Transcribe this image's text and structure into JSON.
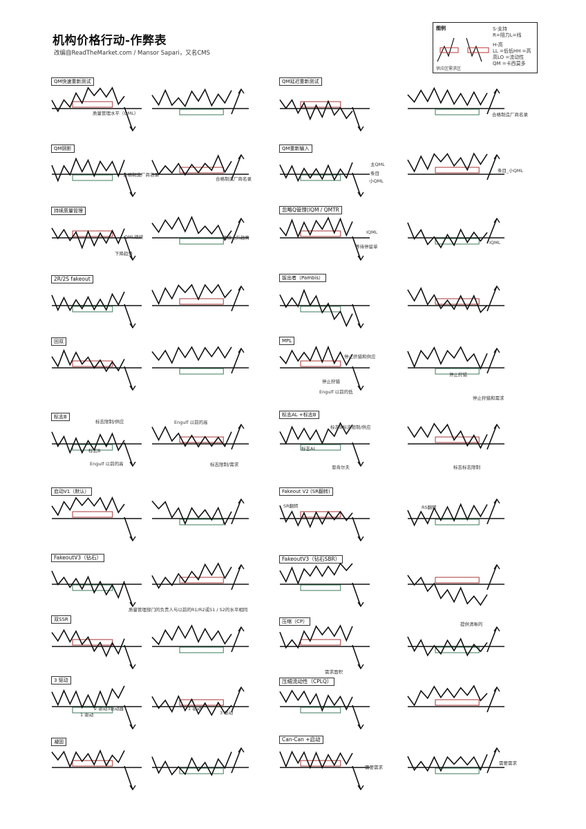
{
  "header": {
    "title": "机构价格行动-作弊表",
    "subtitle": "改编自ReadTheMarket.com / Mansor Sapari，又名CMS"
  },
  "legend": {
    "title": "图例",
    "lines": [
      "S-支持",
      "R=阻力L=线",
      "H-高",
      "LL =低低HH =高",
      "高LO =流动性",
      "QM =卡西莫多"
    ],
    "caption": "供应区需求区"
  },
  "sections": [
    {
      "label": "QM快速重新测试"
    },
    {
      "label": "QM延迟重新测试"
    },
    {
      "label": "QM阴影"
    },
    {
      "label": "QM重新输入"
    },
    {
      "label": "持续质量管理"
    },
    {
      "label": "忽略Q管理(IQM / QMTR"
    },
    {
      "label": "2R/2S fakeout"
    },
    {
      "label": "拔出者（Pambis）"
    },
    {
      "label": "回双"
    },
    {
      "label": "MPL"
    },
    {
      "label": "标志B"
    },
    {
      "label": "标志AL +标志B"
    },
    {
      "label": "启动V1（默认）"
    },
    {
      "label": "Fakeout V2 (SR翻转)"
    },
    {
      "label": "FakeoutV3（钻石）"
    },
    {
      "label": "FakeoutV3（钻石SBR）"
    },
    {
      "label": "双SSR"
    },
    {
      "label": "压缩（CP）"
    },
    {
      "label": "3 驱动"
    },
    {
      "label": "压缩流动性（CPLQ）"
    },
    {
      "label": "凝固"
    },
    {
      "label": "Can-Can +启动"
    }
  ],
  "notes": {
    "qml_level": "质量管理水平（QML）",
    "qm_manufacturer": "合格制造厂商名录",
    "qml_continue": "QML继续",
    "down_trend": "下降趋势",
    "continue_up": "继续上升趋势",
    "iqml": "IQML",
    "wait_stop": "等待停留单",
    "stop_supply": "停止挤猎和供应",
    "stop_hunt": "停止狩猎",
    "engulf": "Engulf 以前的低",
    "stop_demand": "停止狩猎和需求",
    "mark_supply": "标志限制/供应",
    "mark_b": "标志B",
    "mark_demand": "标志限制/需求",
    "mark_al": "标志AL",
    "engulf_r": "Engulf 以前的高",
    "mark_al_b_supply": "标志B标志限制/供应",
    "dasher": "恩肯尔夫",
    "mark_limit": "标志标志限制",
    "sr_flip": "SR翻转",
    "rs_flip": "RS翻转",
    "fakeout_v3_note": "质量管理部门的负责人与以前的R1/R2或S1 / S2的水平相同",
    "demand_area": "需求面积",
    "clear_supply": "提供清晰的",
    "drive3": "2 驱动3驱动器",
    "drive1": "1 驱动",
    "drive3b": "3 驱动",
    "demand_supply": "需要需求",
    "buffer": "缓",
    "strip_mini": "条目_小QML",
    "main_qml": "主QML",
    "entry": "条目",
    "mini_qml": "小QML"
  }
}
